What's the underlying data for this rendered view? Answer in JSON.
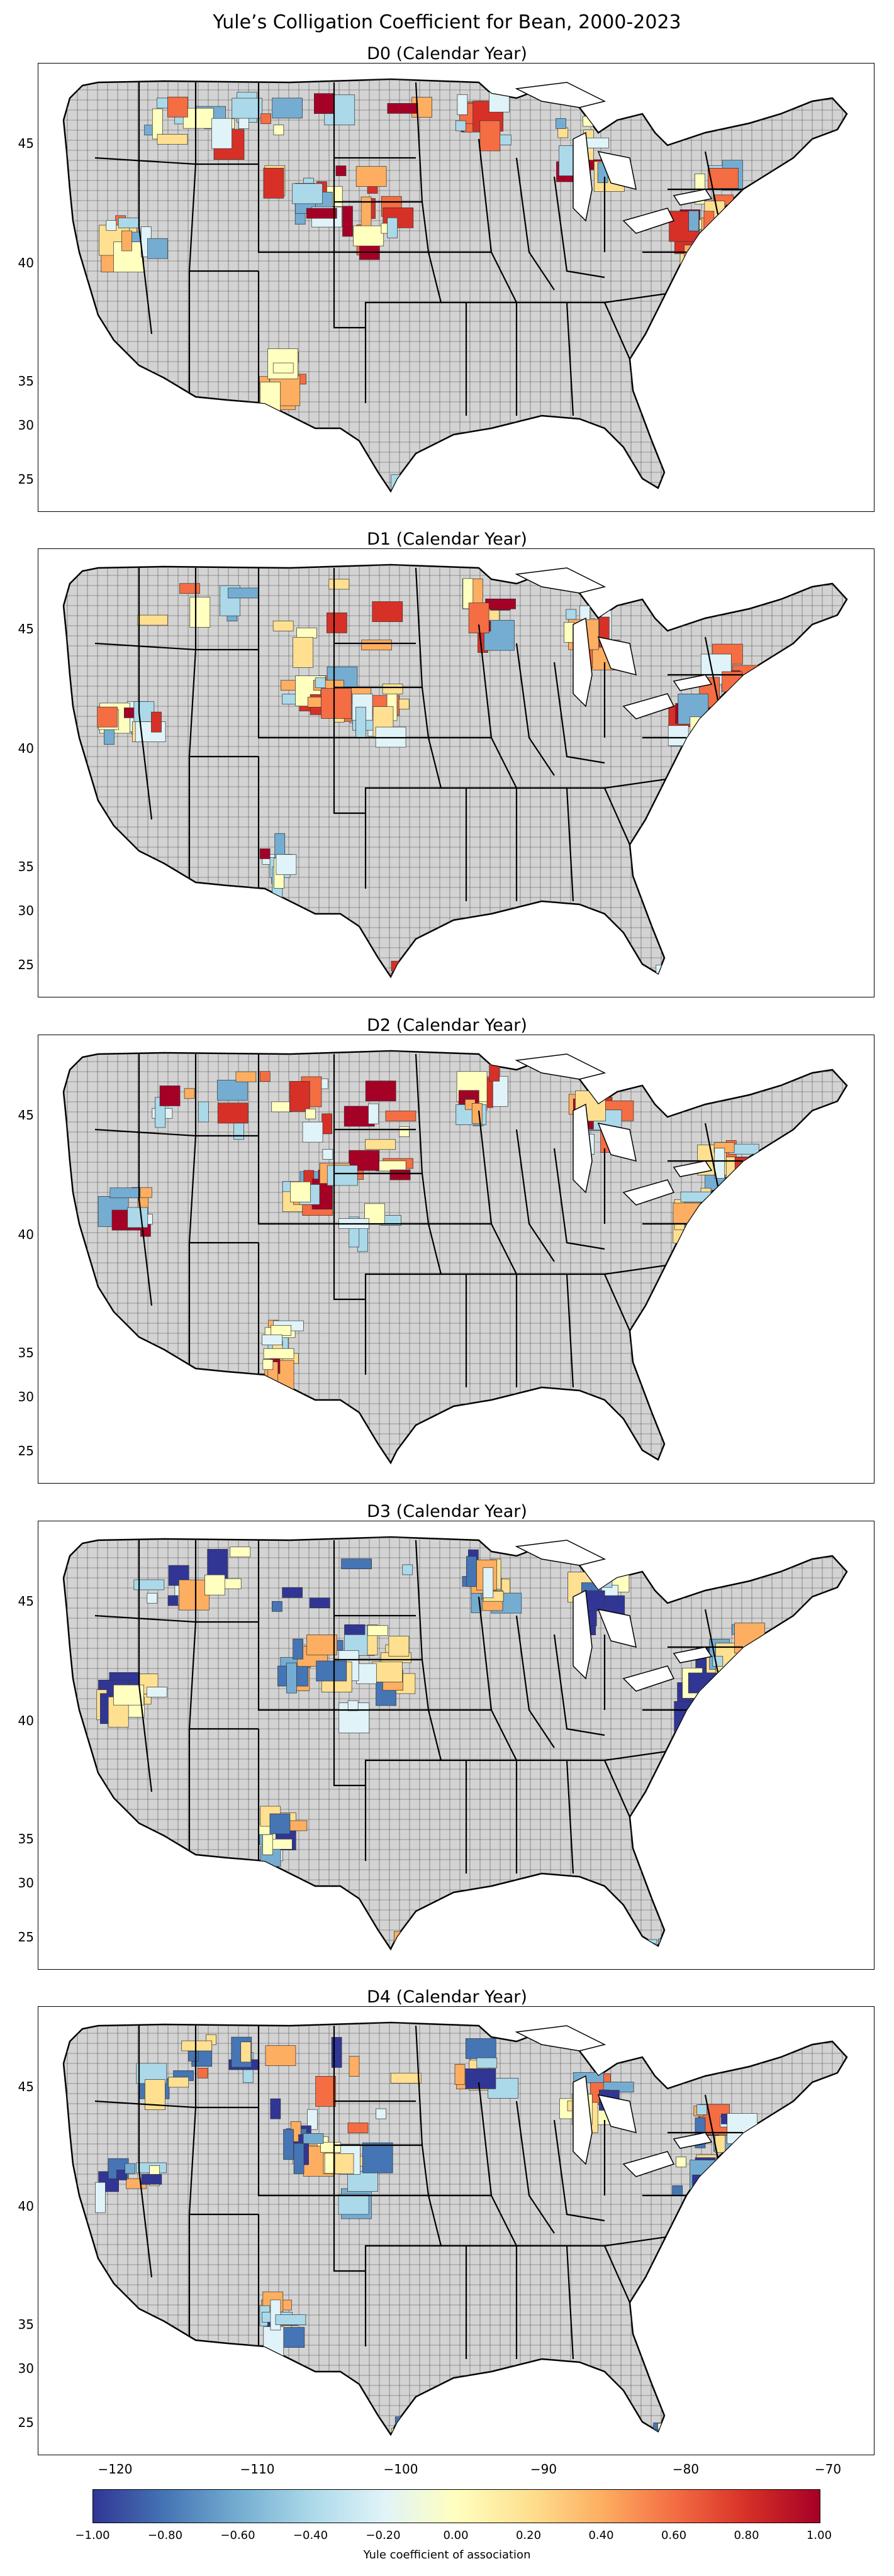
{
  "title": "Yule’s Colligation Coefficient for Bean, 2000-2023",
  "panels": [
    {
      "title": "D0 (Calendar Year)"
    },
    {
      "title": "D1 (Calendar Year)"
    },
    {
      "title": "D2 (Calendar Year)"
    },
    {
      "title": "D3 (Calendar Year)"
    },
    {
      "title": "D4 (Calendar Year)"
    }
  ],
  "axes": {
    "y_ticks": [
      "45",
      "40",
      "35",
      "30",
      "25"
    ],
    "x_ticks": [
      "−120",
      "−110",
      "−100",
      "−90",
      "−80",
      "−70"
    ]
  },
  "colorbar": {
    "label": "Yule coefficient of association",
    "ticks": [
      "−1.00",
      "−0.80",
      "−0.60",
      "−0.40",
      "−0.20",
      "0.00",
      "0.20",
      "0.40",
      "0.60",
      "0.80",
      "1.00"
    ],
    "colormap": [
      "#313695",
      "#4575b4",
      "#74add1",
      "#abd9e9",
      "#e0f3f8",
      "#ffffbf",
      "#fee090",
      "#fdae61",
      "#f46d43",
      "#d73027",
      "#a50026"
    ]
  },
  "colors": {
    "no_data": "#d3d3d3",
    "border": "#000000"
  }
}
